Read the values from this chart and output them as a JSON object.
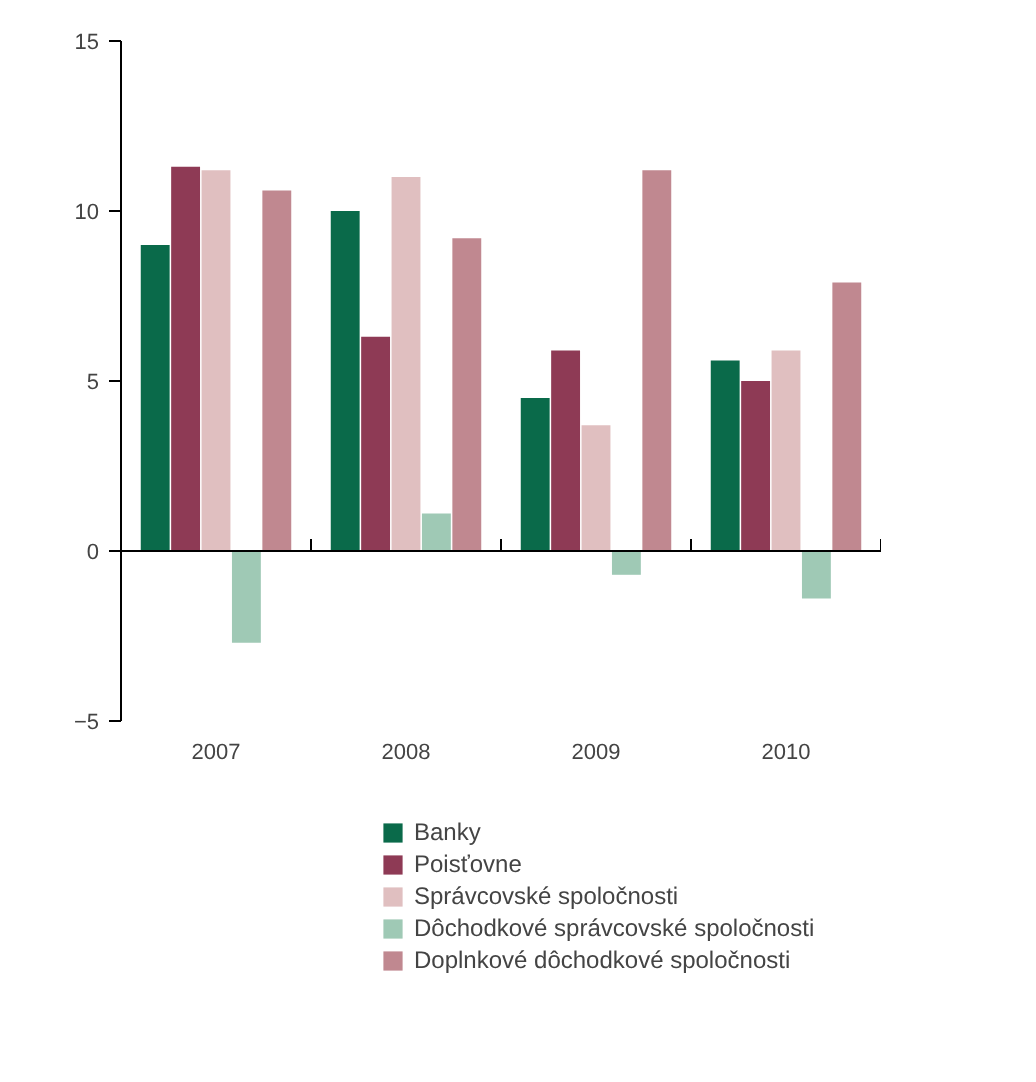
{
  "chart_data": {
    "type": "bar",
    "categories": [
      "2007",
      "2008",
      "2009",
      "2010"
    ],
    "ylim": [
      -5,
      15
    ],
    "yticks": [
      -5,
      0,
      5,
      10,
      15
    ],
    "legend": "bottom",
    "series": [
      {
        "name": "Banky",
        "color": "#0a6a4a",
        "values": [
          9.0,
          10.0,
          4.5,
          5.6
        ]
      },
      {
        "name": "Poisťovne",
        "color": "#8e3a55",
        "values": [
          11.3,
          6.3,
          5.9,
          5.0
        ]
      },
      {
        "name": "Správcovské spoločnosti",
        "color": "#e0bfc0",
        "values": [
          11.2,
          11.0,
          3.7,
          5.9
        ]
      },
      {
        "name": "Dôchodkové správcovské spoločnosti",
        "color": "#9fc9b5",
        "values": [
          -2.7,
          1.1,
          -0.7,
          -1.4
        ]
      },
      {
        "name": "Doplnkové dôchodkové spoločnosti",
        "color": "#c08890",
        "values": [
          10.6,
          9.2,
          11.2,
          7.9
        ]
      }
    ]
  }
}
